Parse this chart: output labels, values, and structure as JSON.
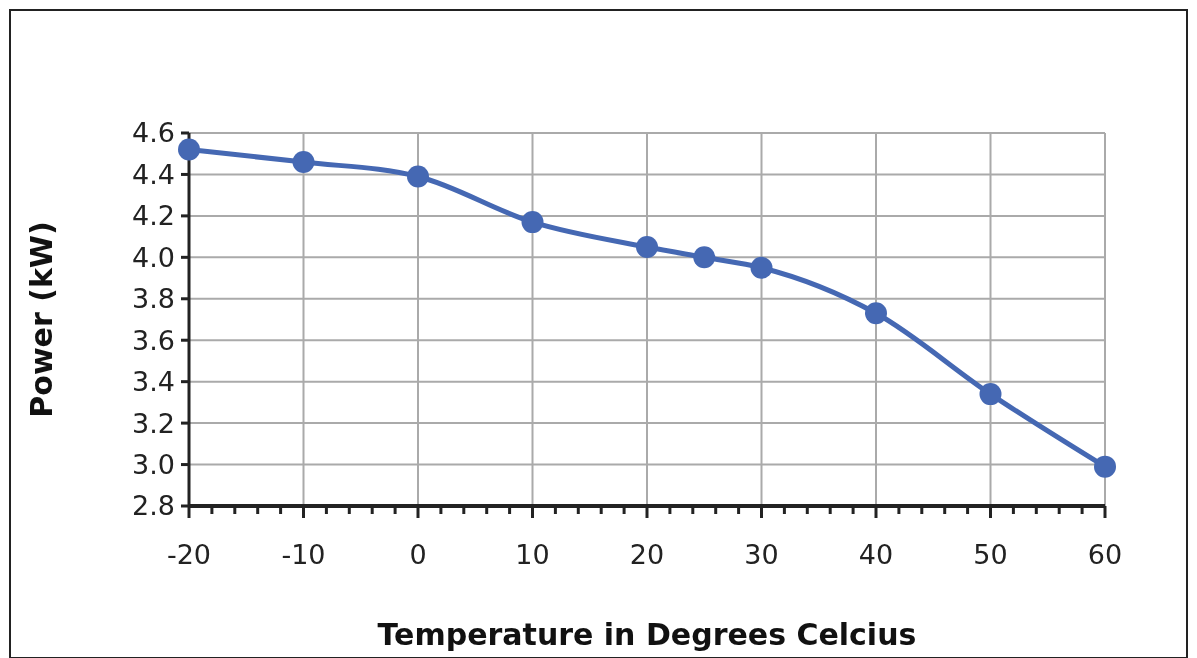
{
  "chart_data": {
    "type": "line",
    "xlabel": "Temperature in Degrees Celcius",
    "ylabel": "Power (kW)",
    "x": [
      -20,
      -10,
      0,
      10,
      20,
      25,
      30,
      40,
      50,
      60
    ],
    "series": [
      {
        "color": "#4568b3",
        "values": [
          4.52,
          4.46,
          4.39,
          4.17,
          4.05,
          4.0,
          3.95,
          3.73,
          3.34,
          2.99
        ]
      }
    ],
    "xlim": [
      -20,
      60
    ],
    "xticks": [
      -20,
      {
        "value": -18,
        "label": null
      },
      {
        "value": -16,
        "label": null
      },
      {
        "value": -14,
        "label": null
      },
      {
        "value": -12,
        "label": null
      },
      -10,
      {
        "value": -8,
        "label": null
      },
      {
        "value": -6,
        "label": null
      },
      {
        "value": -4,
        "label": null
      },
      {
        "value": -2,
        "label": null
      },
      0,
      {
        "value": 2,
        "label": null
      },
      {
        "value": 4,
        "label": null
      },
      {
        "value": 6,
        "label": null
      },
      {
        "value": 8,
        "label": null
      },
      10,
      {
        "value": 12,
        "label": null
      },
      {
        "value": 14,
        "label": null
      },
      {
        "value": 16,
        "label": null
      },
      {
        "value": 18,
        "label": null
      },
      20,
      {
        "value": 22,
        "label": null
      },
      {
        "value": 24,
        "label": null
      },
      {
        "value": 26,
        "label": null
      },
      {
        "value": 28,
        "label": null
      },
      30,
      {
        "value": 32,
        "label": null
      },
      {
        "value": 34,
        "label": null
      },
      {
        "value": 36,
        "label": null
      },
      {
        "value": 38,
        "label": null
      },
      40,
      {
        "value": 42,
        "label": null
      },
      {
        "value": 44,
        "label": null
      },
      {
        "value": 46,
        "label": null
      },
      {
        "value": 48,
        "label": null
      },
      50,
      {
        "value": 52,
        "label": null
      },
      {
        "value": 54,
        "label": null
      },
      {
        "value": 56,
        "label": null
      },
      {
        "value": 58,
        "label": null
      },
      60
    ],
    "ylim": [
      2.8,
      4.6
    ],
    "yticks": [
      {
        "value": 2.8,
        "label": "2.8"
      },
      {
        "value": 3.0,
        "label": "3.0"
      },
      {
        "value": 3.2,
        "label": "3.2"
      },
      {
        "value": 3.4,
        "label": "3.4"
      },
      {
        "value": 3.6,
        "label": "3.6"
      },
      {
        "value": 3.8,
        "label": "3.8"
      },
      {
        "value": 4.0,
        "label": "4.0"
      },
      {
        "value": 4.2,
        "label": "4.2"
      },
      {
        "value": 4.4,
        "label": "4.4"
      },
      {
        "value": 4.6,
        "label": "4.6"
      }
    ],
    "grid": true,
    "marker": "circle",
    "line_style": "solid"
  }
}
